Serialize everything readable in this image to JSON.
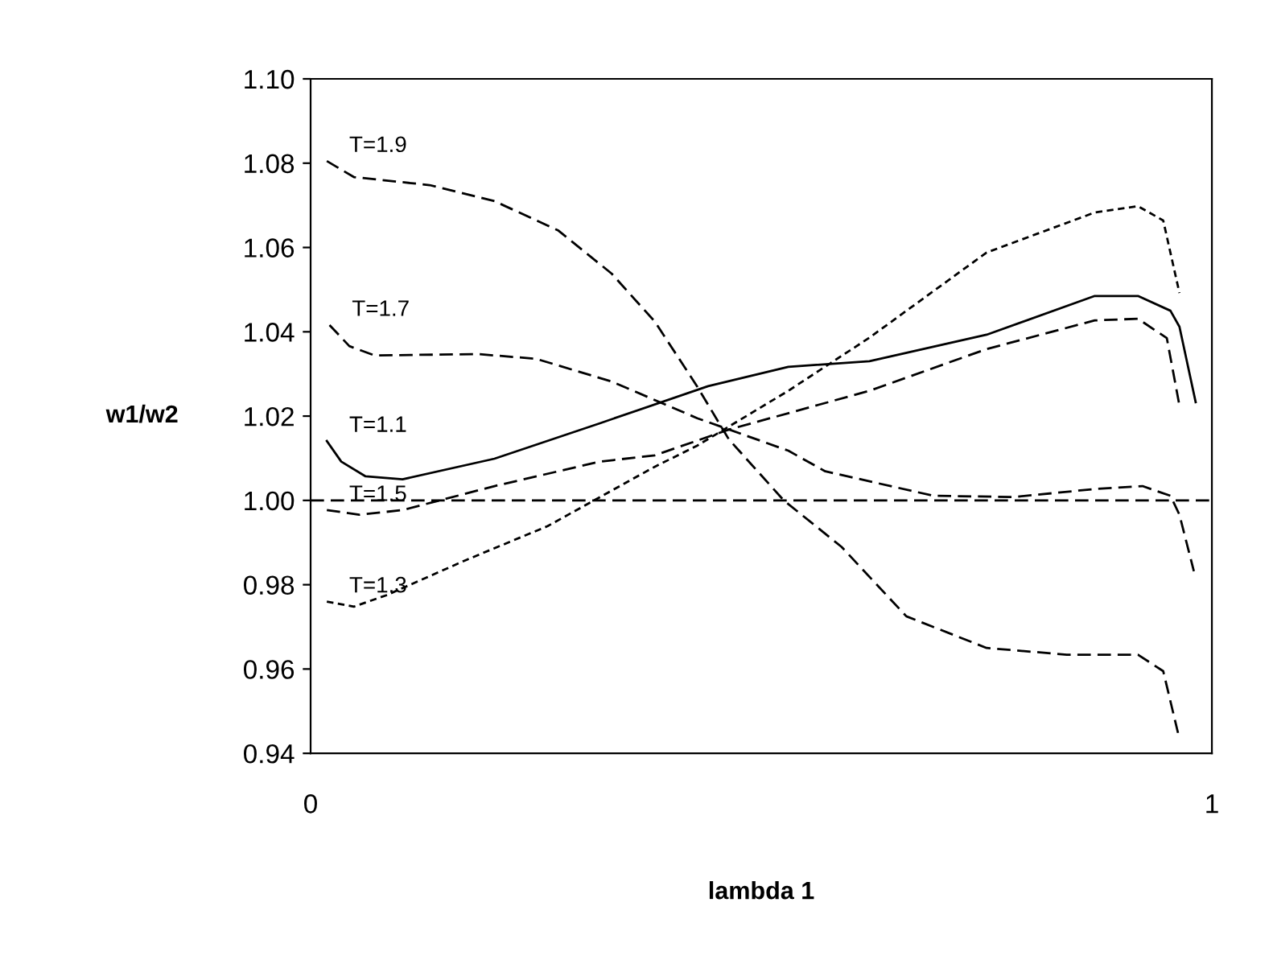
{
  "chart_data": {
    "type": "line",
    "xlabel": "lambda 1",
    "ylabel": "w1/w2",
    "xlim": [
      0,
      1
    ],
    "xticks": [
      0,
      1
    ],
    "ylim": [
      0.94,
      1.1
    ],
    "yticks": [
      {
        "value": 0.94,
        "label": "0.94"
      },
      {
        "value": 0.96,
        "label": "0.96"
      },
      {
        "value": 0.98,
        "label": "0.98"
      },
      {
        "value": 1.0,
        "label": "1.00"
      },
      {
        "value": 1.02,
        "label": "1.02"
      },
      {
        "value": 1.04,
        "label": "1.04"
      },
      {
        "value": 1.06,
        "label": "1.06"
      },
      {
        "value": 1.08,
        "label": "1.08"
      },
      {
        "value": 1.1,
        "label": "1.10"
      }
    ],
    "grid": false,
    "legend": false,
    "marker": "none",
    "ref_lines": [
      {
        "axis": "y",
        "value": 1.0,
        "color": "#000000",
        "line_style": "dashed"
      }
    ],
    "series": [
      {
        "name": "T=1.9",
        "color": "#000000",
        "line_style": "dashed",
        "x": [
          0.018,
          0.048,
          0.132,
          0.204,
          0.275,
          0.334,
          0.382,
          0.429,
          0.464,
          0.525,
          0.589,
          0.661,
          0.75,
          0.839,
          0.918,
          0.946,
          0.963
        ],
        "values": [
          1.0805,
          1.0767,
          1.0748,
          1.071,
          1.064,
          1.0538,
          1.0424,
          1.027,
          1.0145,
          1.0,
          0.989,
          0.9725,
          0.965,
          0.9634,
          0.9634,
          0.9595,
          0.9443
        ]
      },
      {
        "name": "T=1.7",
        "color": "#000000",
        "line_style": "dashed",
        "x": [
          0.021,
          0.043,
          0.071,
          0.186,
          0.25,
          0.334,
          0.429,
          0.53,
          0.571,
          0.691,
          0.78,
          0.87,
          0.923,
          0.954,
          0.964,
          0.98
        ],
        "values": [
          1.0416,
          1.0366,
          1.0344,
          1.0347,
          1.0336,
          1.0282,
          1.0195,
          1.0118,
          1.0069,
          1.0011,
          1.0008,
          1.0027,
          1.0034,
          1.0011,
          0.9966,
          0.9832
        ]
      },
      {
        "name": "T=1.1",
        "color": "#000000",
        "line_style": "solid",
        "x": [
          0.018,
          0.034,
          0.061,
          0.102,
          0.204,
          0.321,
          0.441,
          0.53,
          0.62,
          0.75,
          0.87,
          0.918,
          0.954,
          0.964,
          0.982
        ],
        "values": [
          1.0141,
          1.0092,
          1.0057,
          1.005,
          1.0099,
          1.0183,
          1.0271,
          1.0317,
          1.033,
          1.0393,
          1.0485,
          1.0485,
          1.045,
          1.0412,
          1.0233
        ]
      },
      {
        "name": "T=1.5",
        "color": "#000000",
        "line_style": "dashed",
        "x": [
          0.018,
          0.054,
          0.102,
          0.204,
          0.321,
          0.382,
          0.464,
          0.62,
          0.75,
          0.87,
          0.918,
          0.95,
          0.964
        ],
        "values": [
          0.9977,
          0.9966,
          0.9977,
          1.0034,
          1.0092,
          1.0107,
          1.0168,
          1.026,
          1.0359,
          1.0427,
          1.0431,
          1.0385,
          1.0225
        ]
      },
      {
        "name": "T=1.3",
        "color": "#000000",
        "line_style": "dotted",
        "x": [
          0.018,
          0.048,
          0.084,
          0.173,
          0.263,
          0.311,
          0.382,
          0.429,
          0.53,
          0.62,
          0.75,
          0.87,
          0.918,
          0.946,
          0.964
        ],
        "values": [
          0.976,
          0.9748,
          0.9775,
          0.9859,
          0.9939,
          0.9996,
          1.008,
          1.013,
          1.026,
          1.0386,
          1.0588,
          1.0683,
          1.0698,
          1.0664,
          1.0492
        ]
      }
    ]
  }
}
